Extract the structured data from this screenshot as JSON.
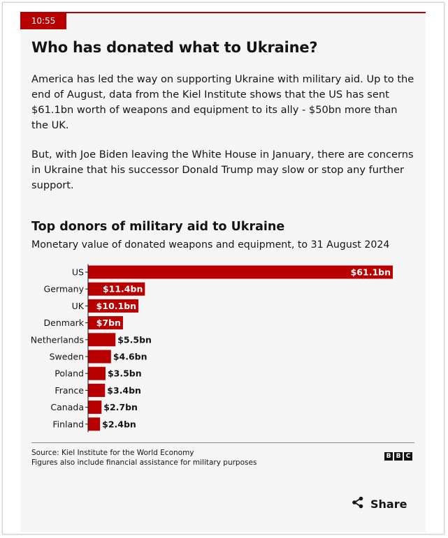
{
  "timestamp": "10:55",
  "article": {
    "headline": "Who has donated what to Ukraine?",
    "paragraphs": [
      "America has led the way on supporting Ukraine with military aid. Up to the end of August, data from the Kiel Institute shows that the US has sent $61.1bn worth of weapons and equipment to its ally - $50bn more than the UK.",
      "But, with Joe Biden leaving the White House in January, there are concerns in Ukraine that his successor Donald Trump may slow or stop any further support."
    ]
  },
  "chart_data": {
    "type": "bar",
    "orientation": "horizontal",
    "title": "Top donors of military aid to Ukraine",
    "subtitle": "Monetary value of donated weapons and equipment, to 31 August 2024",
    "categories": [
      "US",
      "Germany",
      "UK",
      "Denmark",
      "Netherlands",
      "Sweden",
      "Poland",
      "France",
      "Canada",
      "Finland"
    ],
    "values": [
      61.1,
      11.4,
      10.1,
      7,
      5.5,
      4.6,
      3.5,
      3.4,
      2.7,
      2.4
    ],
    "value_labels": [
      "$61.1bn",
      "$11.4bn",
      "$10.1bn",
      "$7bn",
      "$5.5bn",
      "$4.6bn",
      "$3.5bn",
      "$3.4bn",
      "$2.7bn",
      "$2.4bn"
    ],
    "xlim": [
      0,
      61.1
    ],
    "bar_color": "#b80000",
    "grid": false
  },
  "footer": {
    "source": "Source: Kiel Institute for the World Economy",
    "note": "Figures also include financial assistance for military purposes",
    "logo_letters": [
      "B",
      "B",
      "C"
    ]
  },
  "share": {
    "label": "Share",
    "icon": "share-icon"
  },
  "colors": {
    "accent": "#b80000",
    "card_background": "#f5f5f5",
    "text": "#141414"
  }
}
